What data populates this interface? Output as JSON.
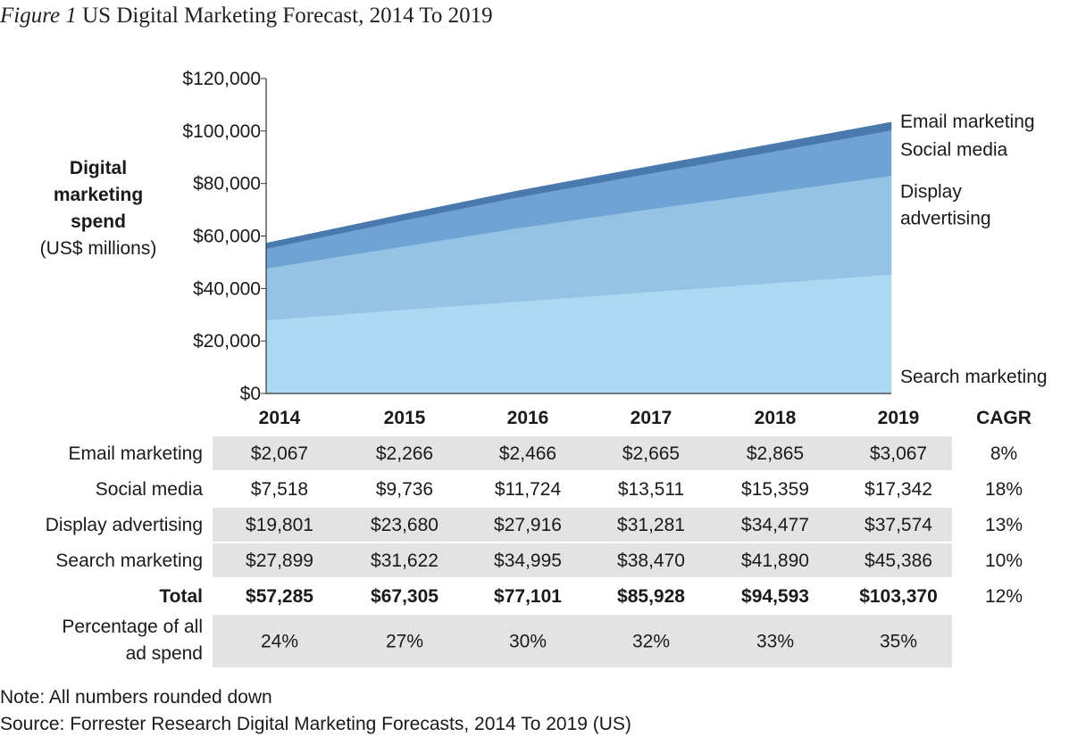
{
  "figure": {
    "number": "Figure 1",
    "title": "US Digital Marketing Forecast, 2014 To 2019"
  },
  "chart_data": {
    "type": "area",
    "stacked": true,
    "x": [
      "2014",
      "2015",
      "2016",
      "2017",
      "2018",
      "2019"
    ],
    "ylabel_lines": [
      "Digital",
      "marketing",
      "spend"
    ],
    "ylabel_unit": "(US$ millions)",
    "ylim": [
      0,
      120000
    ],
    "yticks": [
      0,
      20000,
      40000,
      60000,
      80000,
      100000,
      120000
    ],
    "ytick_labels": [
      "$0",
      "$20,000",
      "$40,000",
      "$60,000",
      "$80,000",
      "$100,000",
      "$120,000"
    ],
    "series": [
      {
        "name": "Search marketing",
        "values": [
          27899,
          31622,
          34995,
          38470,
          41890,
          45386
        ],
        "color": "#acd8f2"
      },
      {
        "name": "Display advertising",
        "values": [
          19801,
          23680,
          27916,
          31281,
          34477,
          37574
        ],
        "color": "#94c3e6"
      },
      {
        "name": "Social media",
        "values": [
          7518,
          9736,
          11724,
          13511,
          15359,
          17342
        ],
        "color": "#6fa3d3"
      },
      {
        "name": "Email marketing",
        "values": [
          2067,
          2266,
          2466,
          2665,
          2865,
          3067
        ],
        "color": "#4a79ad"
      }
    ],
    "series_labels": [
      {
        "lines": [
          "Email marketing"
        ]
      },
      {
        "lines": [
          "Social media"
        ]
      },
      {
        "lines": [
          "Display",
          "advertising"
        ]
      },
      {
        "lines": [
          "Search marketing"
        ]
      }
    ]
  },
  "table": {
    "columns": [
      "2014",
      "2015",
      "2016",
      "2017",
      "2018",
      "2019",
      "CAGR"
    ],
    "rows": [
      {
        "label": [
          "Email marketing"
        ],
        "values": [
          "$2,067",
          "$2,266",
          "$2,466",
          "$2,665",
          "$2,865",
          "$3,067"
        ],
        "cagr": "8%",
        "bold": false
      },
      {
        "label": [
          "Social media"
        ],
        "values": [
          "$7,518",
          "$9,736",
          "$11,724",
          "$13,511",
          "$15,359",
          "$17,342"
        ],
        "cagr": "18%",
        "bold": false
      },
      {
        "label": [
          "Display advertising"
        ],
        "values": [
          "$19,801",
          "$23,680",
          "$27,916",
          "$31,281",
          "$34,477",
          "$37,574"
        ],
        "cagr": "13%",
        "bold": false
      },
      {
        "label": [
          "Search marketing"
        ],
        "values": [
          "$27,899",
          "$31,622",
          "$34,995",
          "$38,470",
          "$41,890",
          "$45,386"
        ],
        "cagr": "10%",
        "bold": false
      },
      {
        "label": [
          "Total"
        ],
        "values": [
          "$57,285",
          "$67,305",
          "$77,101",
          "$85,928",
          "$94,593",
          "$103,370"
        ],
        "cagr": "12%",
        "bold": true
      },
      {
        "label": [
          "Percentage of all",
          "ad spend"
        ],
        "values": [
          "24%",
          "27%",
          "30%",
          "32%",
          "33%",
          "35%"
        ],
        "cagr": "",
        "bold": false
      }
    ]
  },
  "notes": {
    "note": "Note: All numbers rounded down",
    "source": "Source: Forrester Research Digital Marketing Forecasts, 2014 To 2019 (US)"
  }
}
